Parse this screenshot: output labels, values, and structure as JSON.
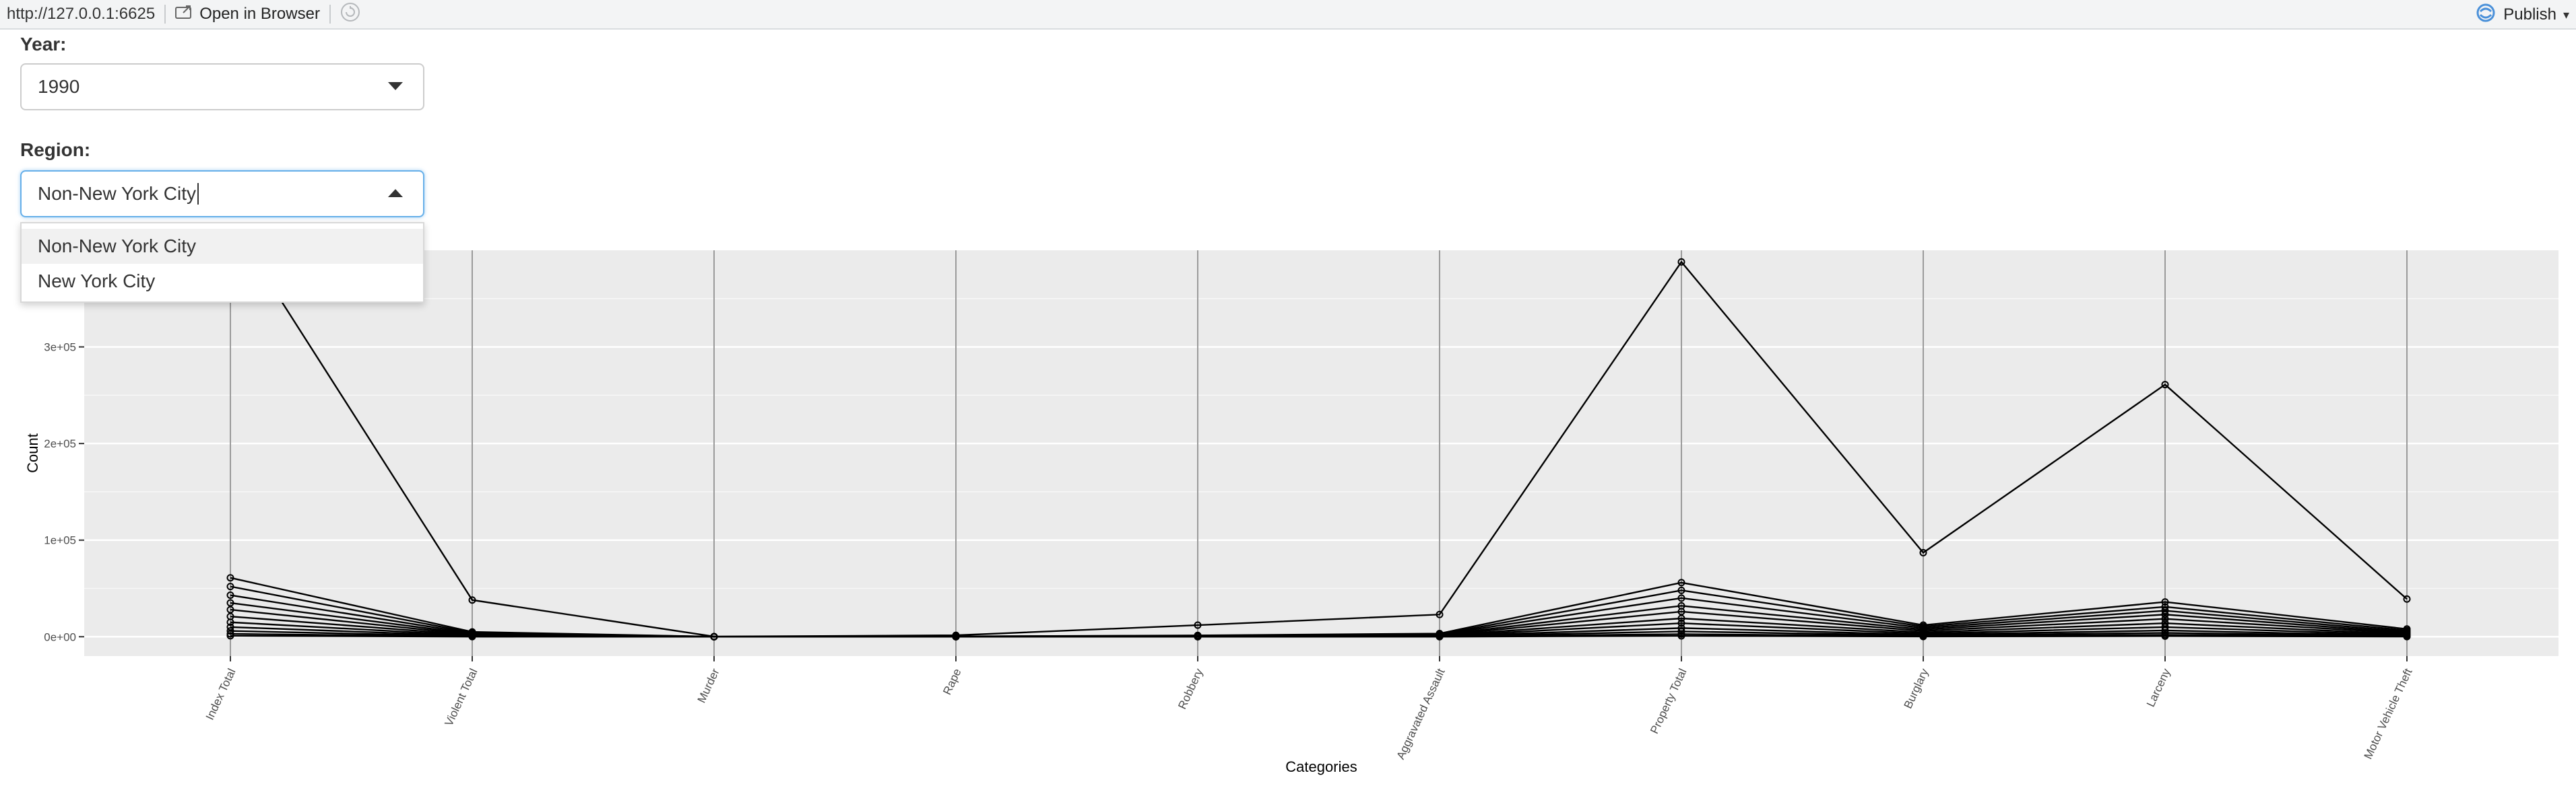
{
  "toolbar": {
    "url": "http://127.0.0.1:6625",
    "open_in_browser": "Open in Browser",
    "publish": "Publish"
  },
  "form": {
    "year_label": "Year:",
    "year_value": "1990",
    "region_label": "Region:",
    "region_value": "Non-New York City",
    "region_options": [
      "Non-New York City",
      "New York City"
    ]
  },
  "chart_data": {
    "type": "line",
    "title": "",
    "xlabel": "Categories",
    "ylabel": "Count",
    "ylim": [
      -20000,
      400000
    ],
    "yticks": [
      0,
      100000,
      200000,
      300000
    ],
    "ytick_labels": [
      "0e+00",
      "1e+05",
      "2e+05",
      "3e+05"
    ],
    "categories": [
      "Index Total",
      "Violent Total",
      "Murder",
      "Rape",
      "Robbery",
      "Aggravated Assault",
      "Property Total",
      "Burglary",
      "Larceny",
      "Motor Vehicle Theft"
    ],
    "series": [
      {
        "values": [
          430000,
          38000,
          200,
          1500,
          12000,
          23000,
          388000,
          87000,
          261000,
          39000
        ]
      },
      {
        "values": [
          61000,
          5000,
          60,
          350,
          1400,
          3300,
          56000,
          12000,
          36000,
          8000
        ]
      },
      {
        "values": [
          52000,
          4200,
          50,
          300,
          1200,
          2700,
          48000,
          10500,
          31000,
          6500
        ]
      },
      {
        "values": [
          43000,
          3500,
          40,
          250,
          900,
          2300,
          40000,
          9000,
          27000,
          5200
        ]
      },
      {
        "values": [
          35000,
          2800,
          30,
          200,
          700,
          1900,
          32000,
          7500,
          23000,
          4200
        ]
      },
      {
        "values": [
          28000,
          2300,
          20,
          160,
          550,
          1500,
          26000,
          6000,
          18500,
          3500
        ]
      },
      {
        "values": [
          21000,
          1800,
          15,
          120,
          400,
          1200,
          19000,
          4500,
          14000,
          2600
        ]
      },
      {
        "values": [
          15000,
          1300,
          10,
          90,
          300,
          850,
          14000,
          3200,
          10000,
          1900
        ]
      },
      {
        "values": [
          10000,
          900,
          8,
          60,
          200,
          600,
          9000,
          2100,
          6500,
          1200
        ]
      },
      {
        "values": [
          6000,
          500,
          5,
          40,
          120,
          350,
          5500,
          1300,
          4000,
          800
        ]
      },
      {
        "values": [
          3000,
          250,
          3,
          20,
          60,
          170,
          2700,
          650,
          2000,
          400
        ]
      },
      {
        "values": [
          1000,
          80,
          1,
          8,
          20,
          50,
          900,
          220,
          650,
          130
        ]
      }
    ]
  }
}
